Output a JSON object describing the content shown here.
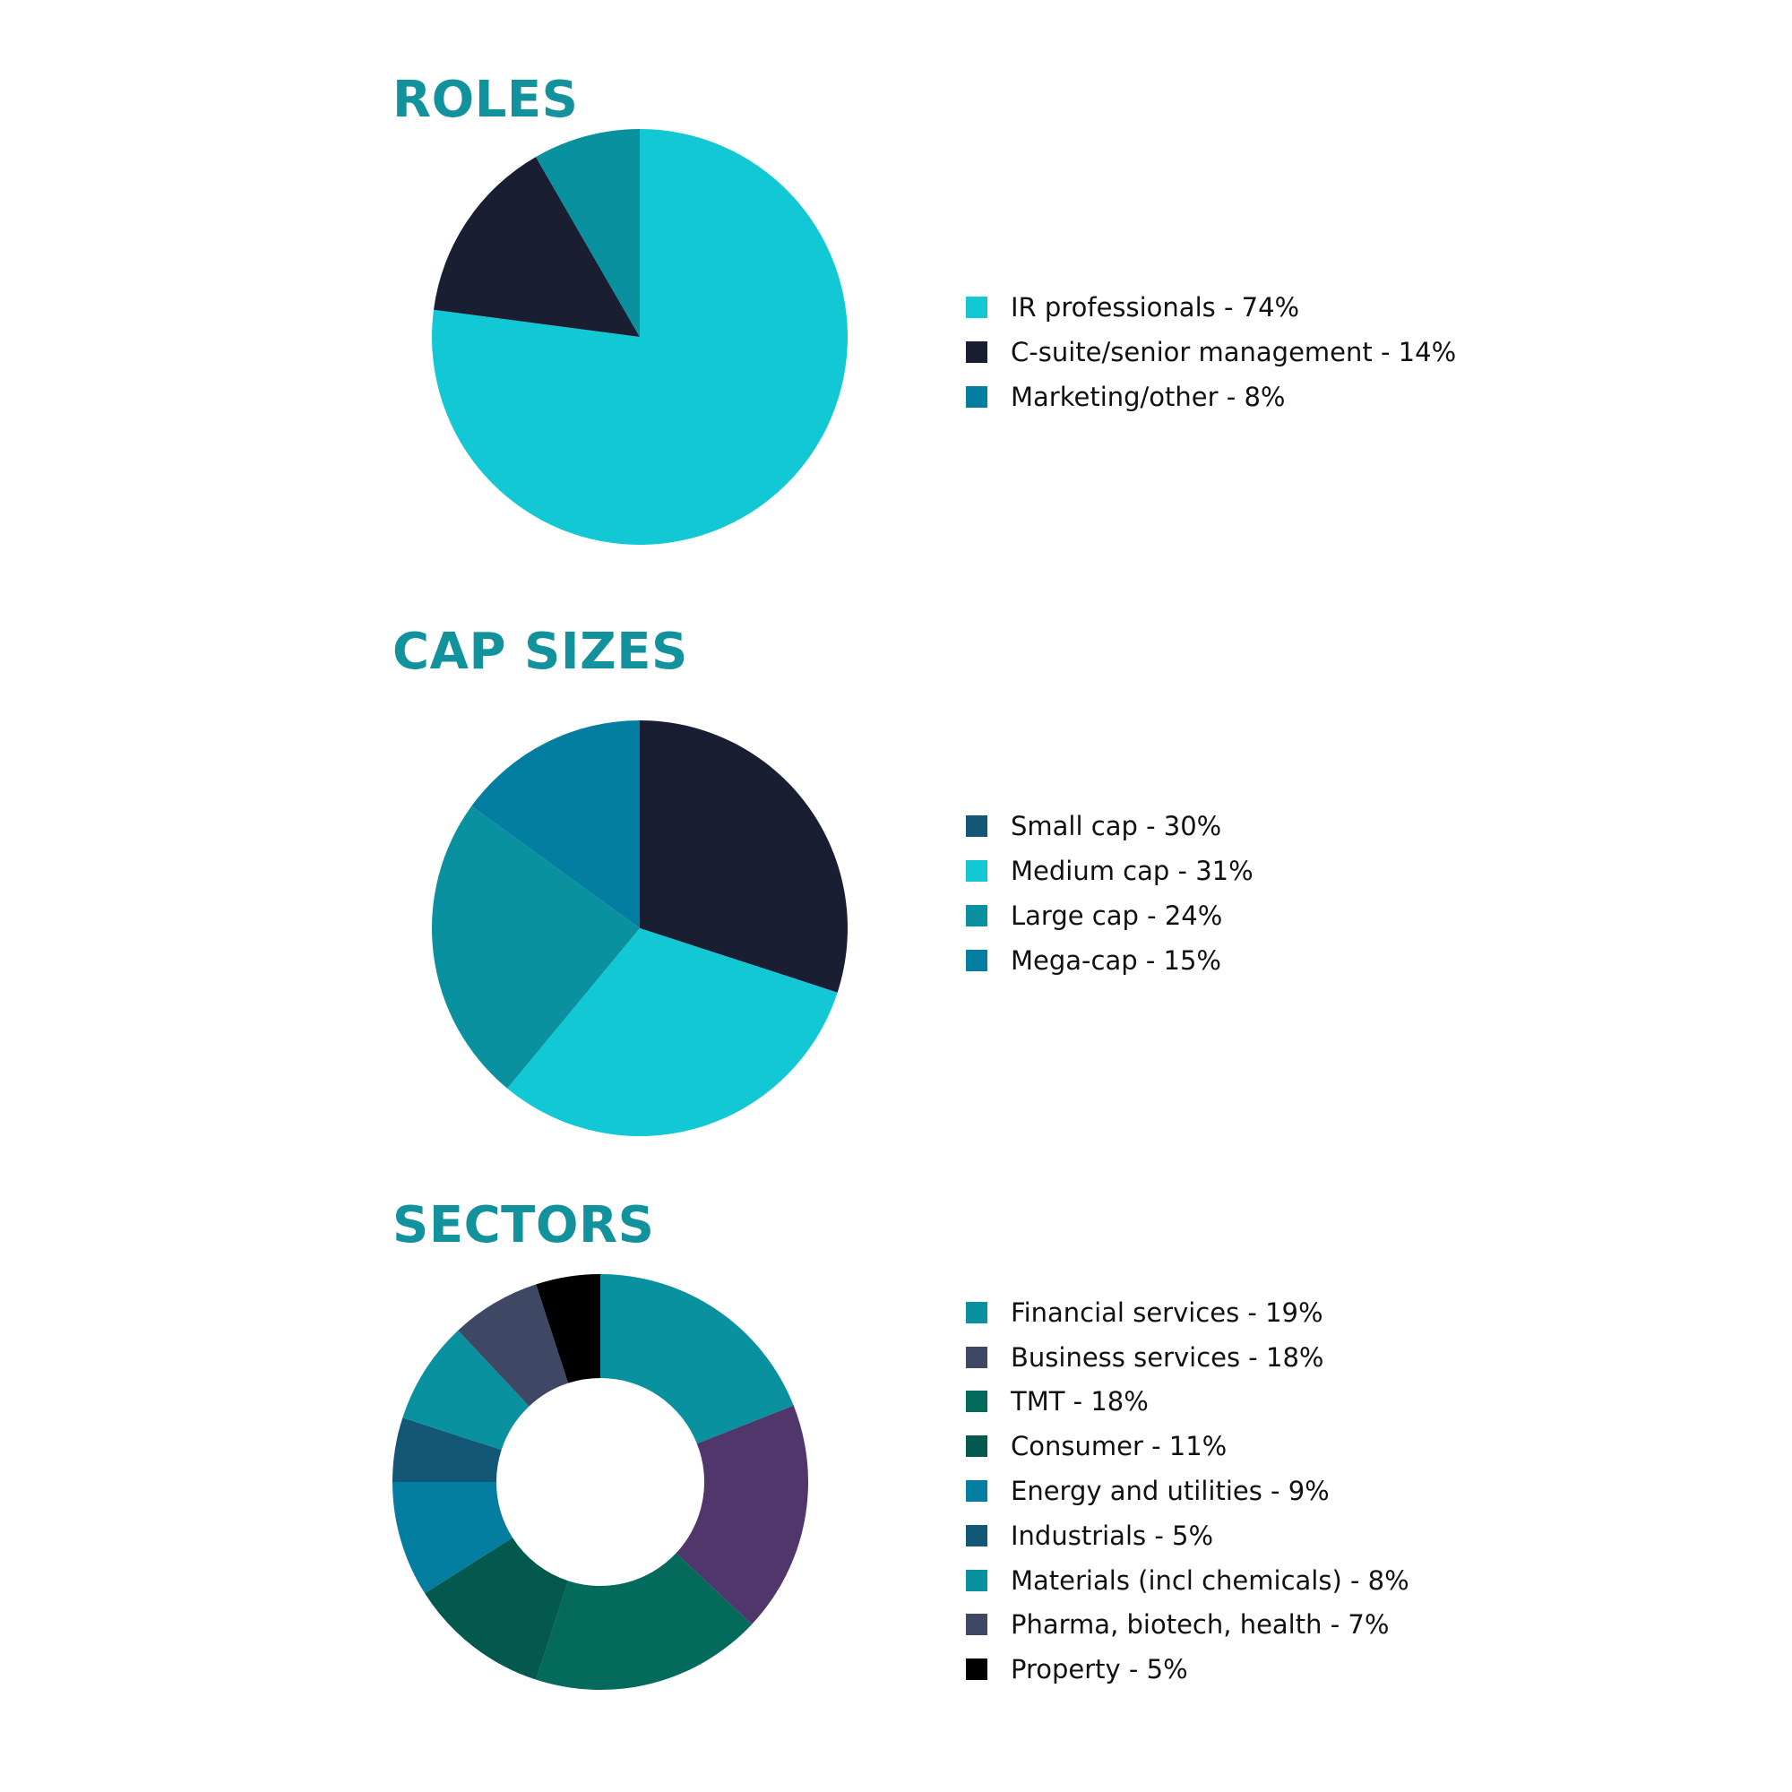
{
  "chart_data": [
    {
      "type": "pie",
      "title": "ROLES",
      "categories": [
        "IR professionals",
        "C-suite/senior management",
        "Marketing/other"
      ],
      "values": [
        74,
        14,
        8
      ],
      "legend_labels": [
        "IR professionals - 74%",
        "C-suite/senior management - 14%",
        "Marketing/other - 8%"
      ],
      "slice_colors": [
        "#11c8d4",
        "#1a1e33",
        "#0a919f"
      ],
      "legend_colors": [
        "#11c8d4",
        "#1a1e33",
        "#047ea0"
      ],
      "legend_placement": "right"
    },
    {
      "type": "pie",
      "title": "CAP SIZES",
      "categories": [
        "Small cap",
        "Medium cap",
        "Large cap",
        "Mega-cap"
      ],
      "values": [
        30,
        31,
        24,
        15
      ],
      "legend_labels": [
        "Small cap - 30%",
        "Medium cap - 31%",
        "Large cap - 24%",
        "Mega-cap - 15%"
      ],
      "slice_colors": [
        "#1a1e33",
        "#11c8d4",
        "#0a919f",
        "#047ea0"
      ],
      "legend_colors": [
        "#135676",
        "#11c8d4",
        "#0a919f",
        "#047ea0"
      ],
      "legend_placement": "right"
    },
    {
      "type": "donut",
      "title": "SECTORS",
      "categories": [
        "Financial services",
        "Business services",
        "TMT",
        "Consumer",
        "Energy and utilities",
        "Industrials",
        "Materials (incl chemicals)",
        "Pharma, biotech, health",
        "Property"
      ],
      "values": [
        19,
        18,
        18,
        11,
        9,
        5,
        8,
        7,
        5
      ],
      "legend_labels": [
        "Financial services - 19%",
        "Business services - 18%",
        "TMT - 18%",
        "Consumer - 11%",
        "Energy and utilities - 9%",
        "Industrials - 5%",
        "Materials (incl chemicals) - 8%",
        "Pharma, biotech, health - 7%",
        "Property - 5%"
      ],
      "slice_colors": [
        "#0a919f",
        "#51366c",
        "#036a5c",
        "#04594f",
        "#047ea0",
        "#135676",
        "#0a919f",
        "#3e4764",
        "#000000"
      ],
      "legend_colors": [
        "#0a919f",
        "#3e4764",
        "#036a5c",
        "#04594f",
        "#047ea0",
        "#135676",
        "#0a919f",
        "#3e4764",
        "#000000"
      ],
      "legend_placement": "right"
    }
  ]
}
